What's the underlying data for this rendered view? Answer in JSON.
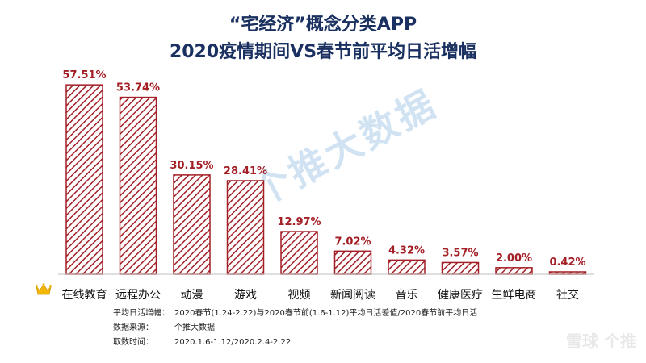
{
  "title_line1": "“宅经济”概念分类APP",
  "title_line2": "2020疫情期间VS春节前平均日活增幅",
  "watermark": "个推大数据",
  "brand": "雪球 个推",
  "chart_data": {
    "type": "bar",
    "title": "“宅经济”概念分类APP 2020疫情期间VS春节前平均日活增幅",
    "categories": [
      "在线教育",
      "远程办公",
      "动漫",
      "游戏",
      "视频",
      "新闻阅读",
      "音乐",
      "健康医疗",
      "生鲜电商",
      "社交"
    ],
    "values": [
      57.51,
      53.74,
      30.15,
      28.41,
      12.97,
      7.02,
      4.32,
      3.57,
      2.0,
      0.42
    ],
    "labels": [
      "57.51%",
      "53.74%",
      "30.15%",
      "28.41%",
      "12.97%",
      "7.02%",
      "4.32%",
      "3.57%",
      "2.00%",
      "0.42%"
    ],
    "ylim": [
      0,
      60
    ],
    "grid": false,
    "colors": {
      "bar_stroke": "#a31f25",
      "bar_hatch": "#a31f25",
      "label": "#a31f25",
      "axis": "#bfbfbf"
    }
  },
  "notes": [
    {
      "label": "平均日活增幅：",
      "text": "2020春节(1.24-2.22)与2020春节前(1.6-1.12)平均日活差值/2020春节前平均日活"
    },
    {
      "label": "数据来源：",
      "text": "个推大数据"
    },
    {
      "label": "取数时间：",
      "text": "2020.1.6-1.12/2020.2.4-2.22"
    }
  ]
}
